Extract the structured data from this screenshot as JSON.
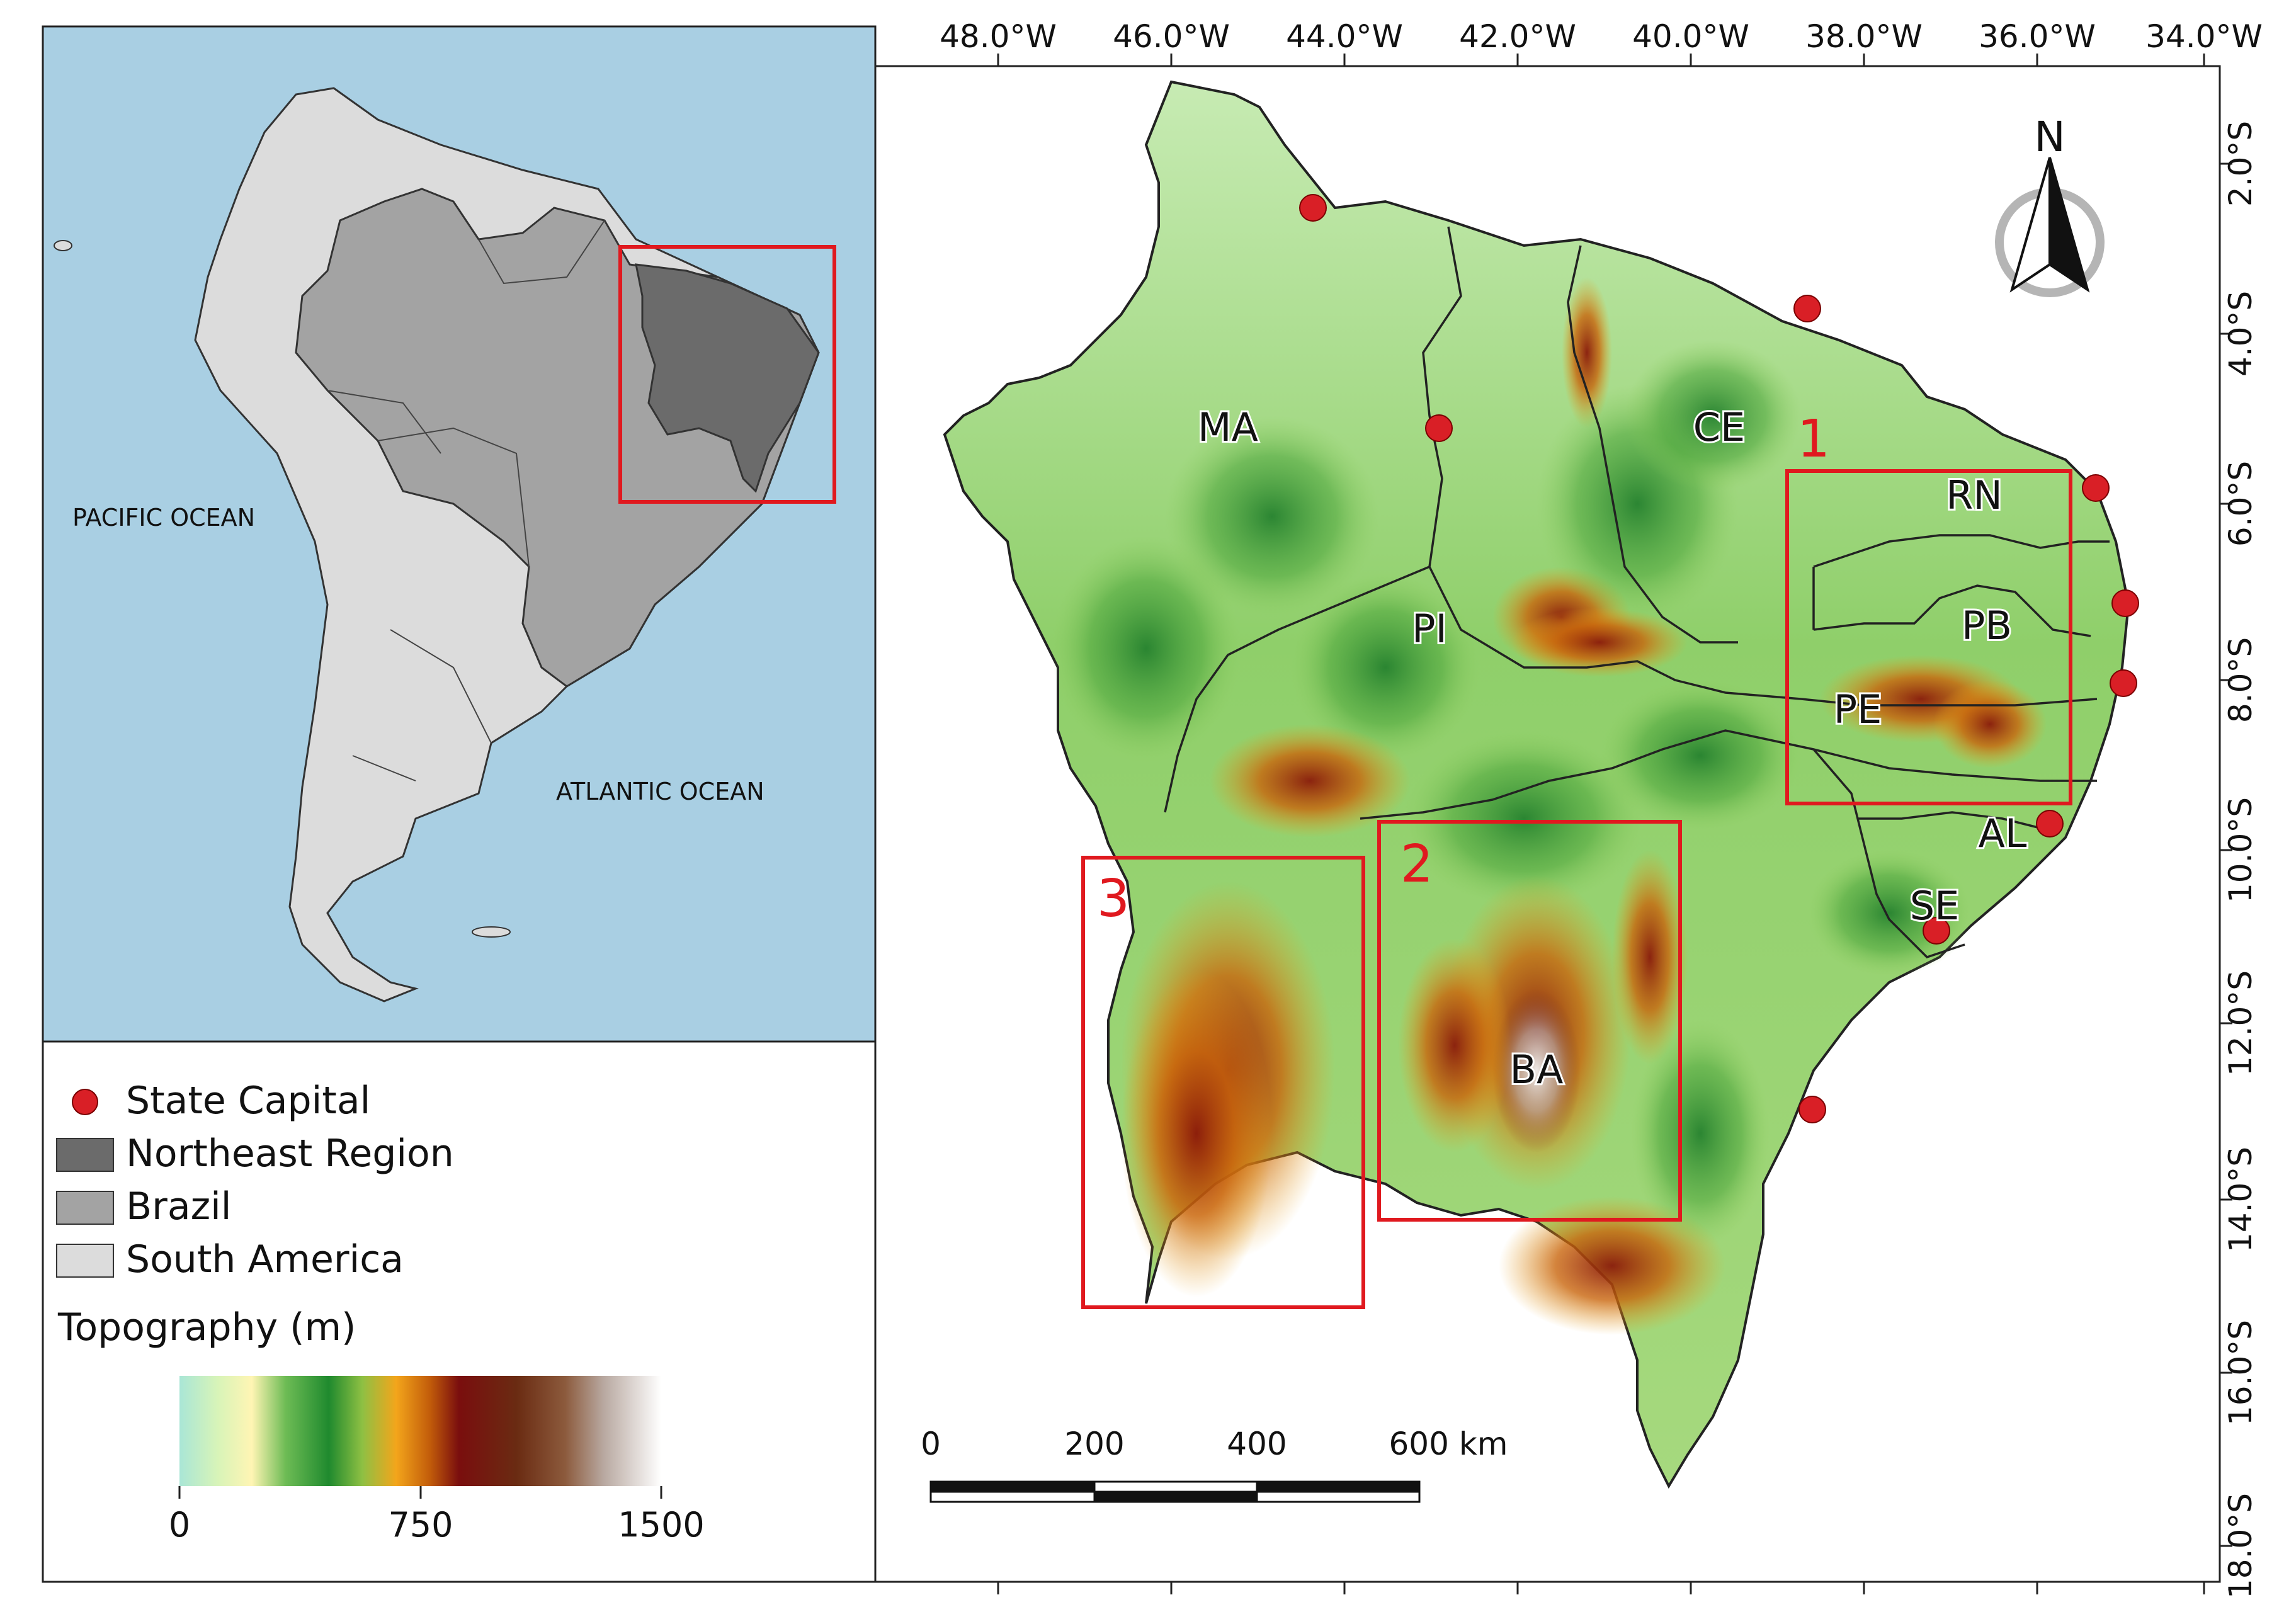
{
  "inset": {
    "labels": {
      "pacific": "PACIFIC OCEAN",
      "atlantic": "ATLANTIC OCEAN"
    }
  },
  "legend": {
    "state_capital": "State Capital",
    "northeast_region": "Northeast Region",
    "brazil": "Brazil",
    "south_america": "South America",
    "topo_title": "Topography (m)",
    "ramp_ticks": [
      "0",
      "750",
      "1500"
    ]
  },
  "colors": {
    "ocean": "#a9cfe3",
    "south_america": "#dcdcdc",
    "brazil": "#a3a3a3",
    "northeast": "#6b6b6b",
    "capital": "#d91f26",
    "box": "#e0191f"
  },
  "main": {
    "lon_ticks": [
      "48.0°W",
      "46.0°W",
      "44.0°W",
      "42.0°W",
      "40.0°W",
      "38.0°W",
      "36.0°W",
      "34.0°W"
    ],
    "lat_ticks": [
      "2.0°S",
      "4.0°S",
      "6.0°S",
      "8.0°S",
      "10.0°S",
      "12.0°S",
      "14.0°S",
      "16.0°S",
      "18.0°S"
    ],
    "states": [
      "MA",
      "PI",
      "CE",
      "RN",
      "PB",
      "PE",
      "AL",
      "SE",
      "BA"
    ],
    "boxes": [
      "1",
      "2",
      "3"
    ],
    "north": "N",
    "scale_labels": [
      "0",
      "200",
      "400",
      "600 km"
    ]
  }
}
